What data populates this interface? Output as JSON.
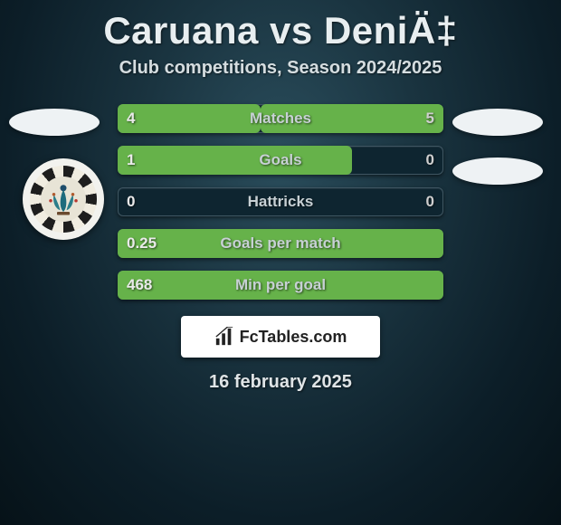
{
  "title": "Caruana vs DeniÄ‡",
  "subtitle": "Club competitions, Season 2024/2025",
  "date": "16 february 2025",
  "branding": {
    "label": "FcTables.com"
  },
  "colors": {
    "text": "#e8e8e8",
    "subtext": "#c7d0d4",
    "track_bg": "#0e2530",
    "track_border": "#3f5662",
    "left_fill": "#66b24a",
    "right_fill": "#66b24a",
    "left_fill_inactive": "#0e2530",
    "right_fill_inactive": "#0e2530",
    "logo_bg": "#eef2f4",
    "badge_bg": "#f2f2ee",
    "panel_bg": "#ffffff"
  },
  "typography": {
    "title_fontsize": 42,
    "subtitle_fontsize": 20,
    "row_fontsize": 17,
    "date_fontsize": 20
  },
  "rows": [
    {
      "label": "Matches",
      "left": "4",
      "right": "5",
      "left_pct": 44,
      "right_pct": 56
    },
    {
      "label": "Goals",
      "left": "1",
      "right": "0",
      "left_pct": 72,
      "right_pct": 0
    },
    {
      "label": "Hattricks",
      "left": "0",
      "right": "0",
      "left_pct": 0,
      "right_pct": 0
    },
    {
      "label": "Goals per match",
      "left": "0.25",
      "right": "",
      "left_pct": 100,
      "right_pct": 0
    },
    {
      "label": "Min per goal",
      "left": "468",
      "right": "",
      "left_pct": 100,
      "right_pct": 0
    }
  ]
}
